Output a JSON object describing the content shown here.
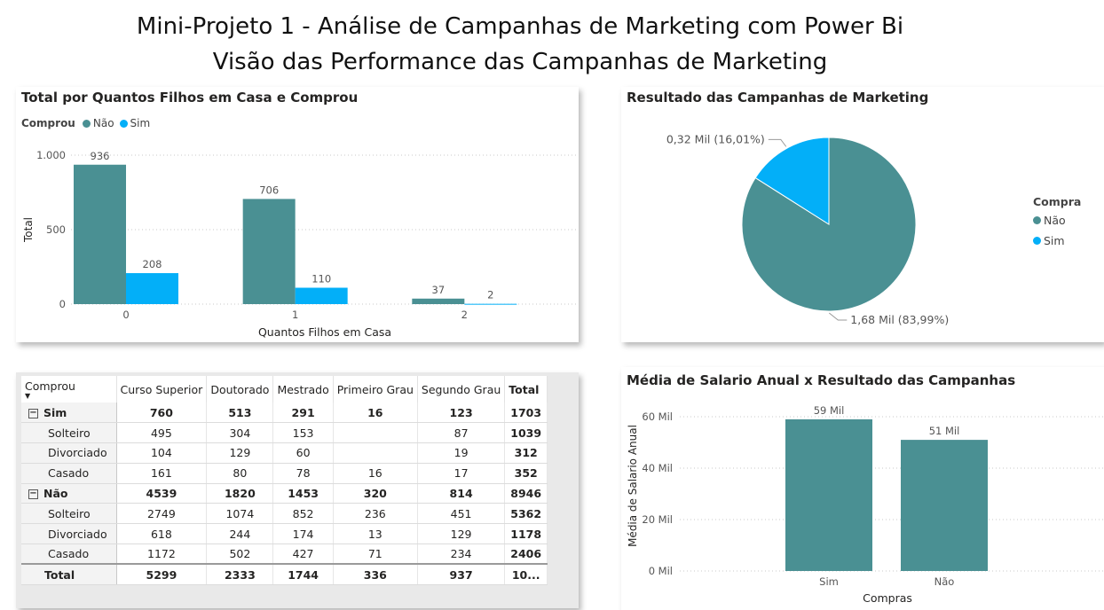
{
  "header": {
    "title": "Mini-Projeto 1 - Análise de Campanhas de Marketing com Power Bi",
    "subtitle": "Visão das Performance das Campanhas de Marketing"
  },
  "colors": {
    "nao": "#4A9093",
    "sim": "#03AFF8"
  },
  "bar_card": {
    "title": "Total por Quantos Filhos em Casa e Comprou",
    "legend_title": "Comprou",
    "legend_items": [
      "Não",
      "Sim"
    ]
  },
  "pie_card": {
    "title": "Resultado das Campanhas de Marketing",
    "legend_title": "Compra",
    "legend_items": [
      "Não",
      "Sim"
    ]
  },
  "table": {
    "corner": "Comprou",
    "columns": [
      "Curso Superior",
      "Doutorado",
      "Mestrado",
      "Primeiro Grau",
      "Segundo Grau",
      "Total"
    ],
    "rows": [
      {
        "label": "Sim",
        "type": "group",
        "values": [
          "760",
          "513",
          "291",
          "16",
          "123",
          "1703"
        ]
      },
      {
        "label": "Solteiro",
        "type": "child",
        "values": [
          "495",
          "304",
          "153",
          "",
          "87",
          "1039"
        ]
      },
      {
        "label": "Divorciado",
        "type": "child",
        "values": [
          "104",
          "129",
          "60",
          "",
          "19",
          "312"
        ]
      },
      {
        "label": "Casado",
        "type": "child",
        "values": [
          "161",
          "80",
          "78",
          "16",
          "17",
          "352"
        ]
      },
      {
        "label": "Não",
        "type": "group",
        "values": [
          "4539",
          "1820",
          "1453",
          "320",
          "814",
          "8946"
        ]
      },
      {
        "label": "Solteiro",
        "type": "child",
        "values": [
          "2749",
          "1074",
          "852",
          "236",
          "451",
          "5362"
        ]
      },
      {
        "label": "Divorciado",
        "type": "child",
        "values": [
          "618",
          "244",
          "174",
          "13",
          "129",
          "1178"
        ]
      },
      {
        "label": "Casado",
        "type": "child",
        "values": [
          "1172",
          "502",
          "427",
          "71",
          "234",
          "2406"
        ]
      },
      {
        "label": "Total",
        "type": "grand",
        "values": [
          "5299",
          "2333",
          "1744",
          "336",
          "937",
          "10..."
        ]
      }
    ]
  },
  "salary_card": {
    "title": "Média de Salario Anual x Resultado das Campanhas"
  },
  "chart_data": [
    {
      "type": "bar",
      "title": "Total por Quantos Filhos em Casa e Comprou",
      "xlabel": "Quantos Filhos em Casa",
      "ylabel": "Total",
      "categories": [
        "0",
        "1",
        "2"
      ],
      "series": [
        {
          "name": "Não",
          "values": [
            936,
            706,
            37
          ]
        },
        {
          "name": "Sim",
          "values": [
            208,
            110,
            2
          ]
        }
      ],
      "ylim": [
        0,
        1000
      ],
      "yticks": [
        0,
        500,
        1000
      ],
      "ytick_labels": [
        "0",
        "500",
        "1.000"
      ],
      "grid": true,
      "legend": "top-left"
    },
    {
      "type": "pie",
      "title": "Resultado das Campanhas de Marketing",
      "slices": [
        {
          "name": "Não",
          "value": 1.68,
          "percent": 83.99,
          "label": "1,68 Mil (83,99%)"
        },
        {
          "name": "Sim",
          "value": 0.32,
          "percent": 16.01,
          "label": "0,32 Mil (16,01%)"
        }
      ],
      "legend": "right"
    },
    {
      "type": "bar",
      "title": "Média de Salario Anual x Resultado das Campanhas",
      "xlabel": "Compras",
      "ylabel": "Média de Salario Anual",
      "categories": [
        "Sim",
        "Não"
      ],
      "values": [
        59000,
        51000
      ],
      "data_labels": [
        "59 Mil",
        "51 Mil"
      ],
      "ylim": [
        0,
        60000
      ],
      "yticks": [
        0,
        20000,
        40000,
        60000
      ],
      "ytick_labels": [
        "0 Mil",
        "20 Mil",
        "40 Mil",
        "60 Mil"
      ],
      "grid": true
    }
  ]
}
